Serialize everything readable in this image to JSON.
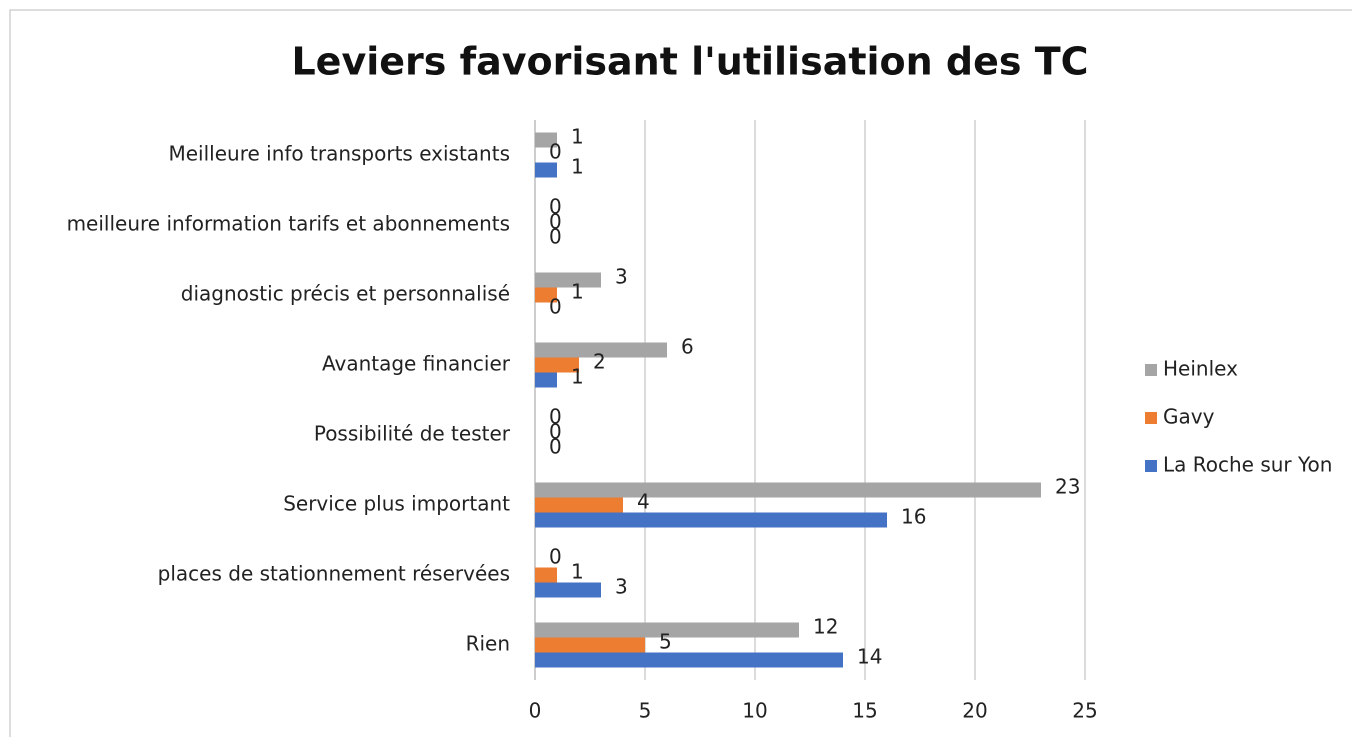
{
  "chart_data": {
    "type": "hbar",
    "title": "Leviers favorisant l'utilisation des TC",
    "categories": [
      "Meilleure info transports existants",
      "meilleure information tarifs et abonnements",
      "diagnostic précis et personnalisé",
      "Avantage financier",
      "Possibilité de tester",
      "Service plus important",
      "places de stationnement réservées",
      "Rien"
    ],
    "series": [
      {
        "name": "Heinlex",
        "color": "#a5a5a5",
        "values": [
          1,
          0,
          3,
          6,
          0,
          23,
          0,
          12
        ]
      },
      {
        "name": "Gavy",
        "color": "#ed7d31",
        "values": [
          0,
          0,
          1,
          2,
          0,
          4,
          1,
          5
        ]
      },
      {
        "name": "La Roche sur Yon",
        "color": "#4472c4",
        "values": [
          1,
          0,
          0,
          1,
          0,
          16,
          3,
          14
        ]
      }
    ],
    "xlim": [
      0,
      25
    ],
    "xticks": [
      0,
      5,
      10,
      15,
      20,
      25
    ],
    "grid": true,
    "legend": "right"
  }
}
